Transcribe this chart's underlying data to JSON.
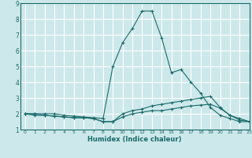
{
  "xlabel": "Humidex (Indice chaleur)",
  "xlim": [
    -0.5,
    23
  ],
  "ylim": [
    1,
    9
  ],
  "xticks": [
    0,
    1,
    2,
    3,
    4,
    5,
    6,
    7,
    8,
    9,
    10,
    11,
    12,
    13,
    14,
    15,
    16,
    17,
    18,
    19,
    20,
    21,
    22,
    23
  ],
  "yticks": [
    1,
    2,
    3,
    4,
    5,
    6,
    7,
    8,
    9
  ],
  "bg_color": "#cde8ea",
  "grid_color": "#ffffff",
  "line_color": "#1a6b6b",
  "lines": [
    {
      "x": [
        0,
        1,
        2,
        3,
        4,
        5,
        6,
        7,
        8,
        9,
        10,
        11,
        12,
        13,
        14,
        15,
        16,
        17,
        18,
        19,
        20,
        21,
        22,
        23
      ],
      "y": [
        2,
        2,
        1.9,
        1.85,
        1.8,
        1.75,
        1.75,
        1.7,
        1.5,
        1.5,
        2.0,
        2.2,
        2.3,
        2.5,
        2.6,
        2.7,
        2.8,
        2.9,
        3.0,
        3.1,
        2.4,
        1.9,
        1.7,
        1.5
      ]
    },
    {
      "x": [
        0,
        1,
        2,
        3,
        4,
        5,
        6,
        7,
        8,
        9,
        10,
        11,
        12,
        13,
        14,
        15,
        16,
        17,
        18,
        19,
        20,
        21,
        22,
        23
      ],
      "y": [
        2,
        1.9,
        1.9,
        1.85,
        1.8,
        1.75,
        1.75,
        1.7,
        1.5,
        1.5,
        1.8,
        2.0,
        2.1,
        2.2,
        2.2,
        2.3,
        2.4,
        2.5,
        2.55,
        2.6,
        2.35,
        1.9,
        1.6,
        1.5
      ]
    },
    {
      "x": [
        0,
        1,
        2,
        3,
        4,
        5,
        6,
        7,
        8,
        9,
        10,
        11,
        12,
        13,
        14,
        15,
        16,
        17,
        18,
        19,
        20,
        21,
        22,
        23
      ],
      "y": [
        2,
        2,
        2,
        2,
        1.9,
        1.85,
        1.8,
        1.75,
        1.7,
        5.0,
        6.5,
        7.4,
        8.5,
        8.5,
        6.8,
        4.6,
        4.8,
        4.0,
        3.3,
        2.4,
        1.9,
        1.7,
        1.5,
        1.5
      ]
    }
  ]
}
